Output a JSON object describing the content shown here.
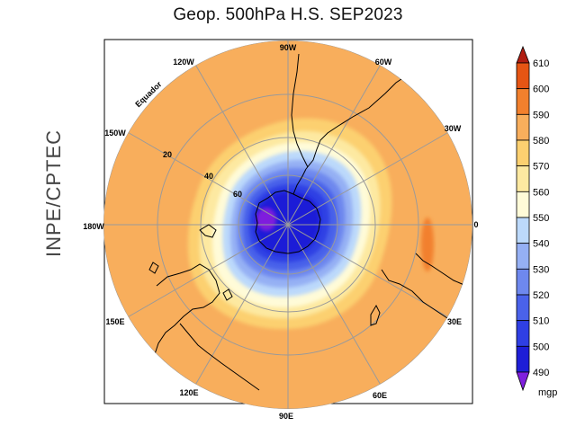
{
  "title": "Geop. 500hPa H.S. SEP2023",
  "side_label": "INPE/CPTEC",
  "map": {
    "projection": "polar stereographic, south pole",
    "longitude_labels": {
      "90W": "90W",
      "60W": "60W",
      "30W": "30W",
      "0": "0",
      "30E": "30E",
      "60E": "60E",
      "90E": "90E",
      "120E": "120E",
      "150E": "150E",
      "180W": "180W",
      "150W": "150W",
      "120W": "120W"
    },
    "latitude_labels": {
      "lat20": "20",
      "lat40": "40",
      "lat60": "60",
      "equator": "Equador"
    },
    "colors": {
      "frame": "#000000",
      "grid": "#9a9a9a",
      "coast": "#000000"
    }
  },
  "colorbar": {
    "unit": "mgp",
    "levels": [
      "490",
      "500",
      "510",
      "520",
      "530",
      "540",
      "550",
      "560",
      "570",
      "580",
      "590",
      "600",
      "610"
    ],
    "colors": [
      "#7f1fdd",
      "#1e1ed7",
      "#2f3fe4",
      "#4a62ea",
      "#6e88ee",
      "#95b0f4",
      "#bcd9fb",
      "#fffbd8",
      "#fde9a1",
      "#fcd070",
      "#f8ae5c",
      "#f2802d",
      "#e65514",
      "#b11e12"
    ]
  }
}
